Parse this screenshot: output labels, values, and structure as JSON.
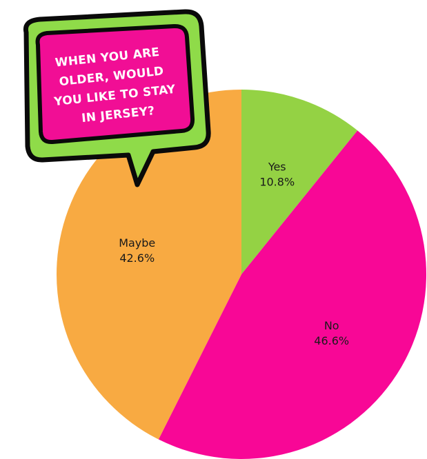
{
  "chart_data": {
    "type": "pie",
    "title_lines": [
      "WHEN YOU ARE",
      "OLDER, WOULD",
      "YOU LIKE TO STAY",
      "IN JERSEY?"
    ],
    "slices": [
      {
        "label": "Yes",
        "value": 10.8,
        "display": "10.8%",
        "color": "#94d244"
      },
      {
        "label": "No",
        "value": 46.6,
        "display": "46.6%",
        "color": "#f80796"
      },
      {
        "label": "Maybe",
        "value": 42.6,
        "display": "42.6%",
        "color": "#f8aa42"
      }
    ],
    "start_angle_deg": 0,
    "direction": "clockwise"
  },
  "colors": {
    "bubble_outer": "#8fdb49",
    "bubble_inner": "#f10e95",
    "bubble_stroke": "#0a0a0a"
  }
}
